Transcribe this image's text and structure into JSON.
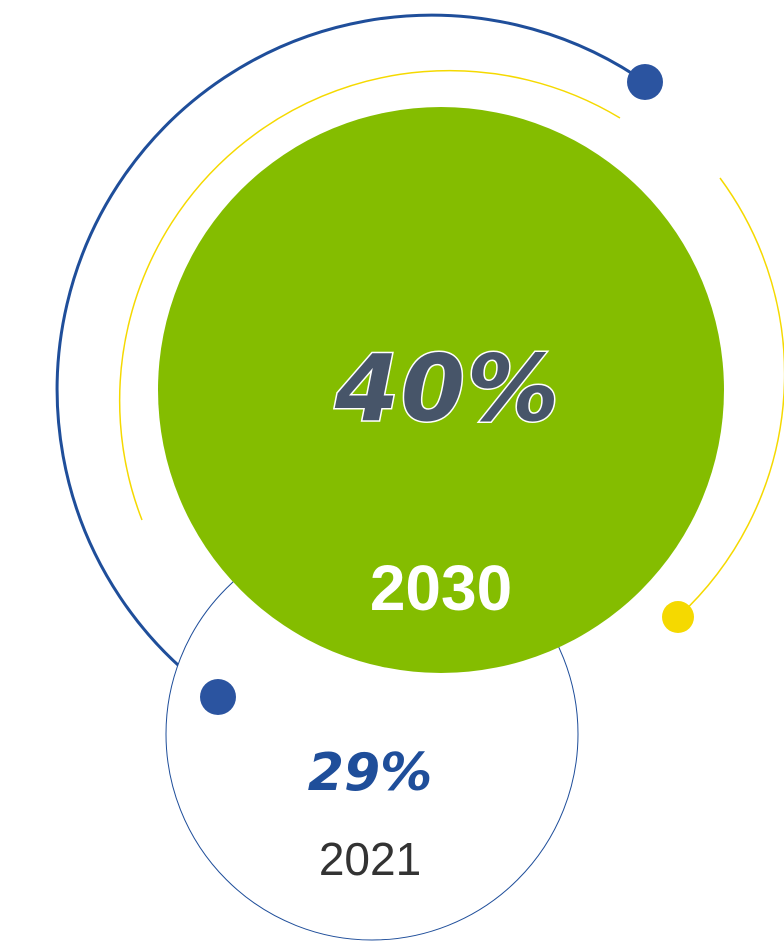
{
  "colors": {
    "main_circle": "#84bd00",
    "navy": "#1f4e9a",
    "dot_navy": "#2b54a0",
    "yellow": "#f5d900",
    "pct_fill": "#475569",
    "small_pct": "#1f4e9a",
    "small_year": "#333333",
    "background": "#ffffff"
  },
  "main_stat": {
    "percent": "40%",
    "year": "2030"
  },
  "secondary_stat": {
    "percent": "29%",
    "year": "2021"
  }
}
